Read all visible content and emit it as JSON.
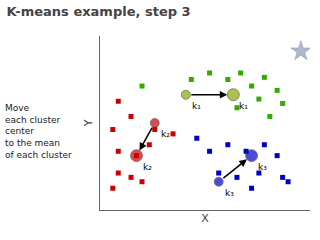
{
  "chart_data": {
    "type": "scatter",
    "title": "K-means example, step 3",
    "xlabel": "X",
    "ylabel": "Y",
    "xlim": [
      0.5,
      12
    ],
    "ylim": [
      2.5,
      10.5
    ],
    "tick_labels": false,
    "grid": false,
    "series": [
      {
        "color": "#33aa00",
        "marker": "square",
        "x": [
          2.8,
          5.5,
          6.5,
          7.5,
          8.2,
          8.8,
          9.5,
          9.2,
          10.2,
          8.0,
          10.5,
          9.8
        ],
        "values": [
          8.2,
          8.5,
          8.8,
          8.5,
          8.8,
          8.2,
          8.6,
          7.6,
          8.0,
          7.2,
          7.4,
          6.8
        ]
      },
      {
        "color": "#cc0000",
        "marker": "square",
        "x": [
          1.5,
          1.2,
          2.2,
          3.5,
          4.5,
          1.5,
          2.5,
          3.2,
          1.5,
          2.2,
          1.2,
          2.8
        ],
        "values": [
          7.5,
          6.2,
          6.8,
          6.2,
          6.0,
          5.2,
          5.0,
          5.5,
          4.2,
          4.0,
          3.5,
          3.8
        ]
      },
      {
        "color": "#0000cc",
        "marker": "square",
        "x": [
          5.8,
          6.5,
          7.5,
          8.5,
          9.5,
          10.2,
          7.0,
          8.0,
          9.2,
          10.5,
          8.8,
          10.8
        ],
        "values": [
          5.8,
          5.2,
          5.5,
          5.2,
          5.5,
          5.0,
          4.2,
          4.0,
          4.2,
          4.0,
          3.5,
          3.8
        ]
      },
      {
        "color": "#88aa00",
        "marker": "circle",
        "line_style": "arrow",
        "x": [
          5.2,
          7.8
        ],
        "values": [
          7.8,
          7.8
        ]
      },
      {
        "color": "#cc0000",
        "marker": "circle",
        "line_style": "arrow",
        "x": [
          3.5,
          2.5
        ],
        "values": [
          6.5,
          5.0
        ]
      },
      {
        "color": "#0000cc",
        "marker": "circle",
        "line_style": "arrow",
        "x": [
          7.0,
          8.8
        ],
        "values": [
          3.8,
          5.0
        ]
      },
      {
        "color": "#b0b8cc",
        "marker": "star",
        "x": [
          11.5
        ],
        "values": [
          9.8
        ]
      }
    ],
    "annotations": [
      {
        "text": "Move\neach cluster\ncenter\nto the mean\nof each cluster"
      },
      {
        "text": "k₁",
        "x": 5.2,
        "y": 7.8
      },
      {
        "text": "k₁",
        "x": 7.8,
        "y": 7.8
      },
      {
        "text": "k₂",
        "x": 3.5,
        "y": 6.5
      },
      {
        "text": "k₂",
        "x": 2.5,
        "y": 5.0
      },
      {
        "text": "k₃",
        "x": 7.0,
        "y": 3.8
      },
      {
        "text": "k₃",
        "x": 8.8,
        "y": 5.0
      }
    ]
  }
}
